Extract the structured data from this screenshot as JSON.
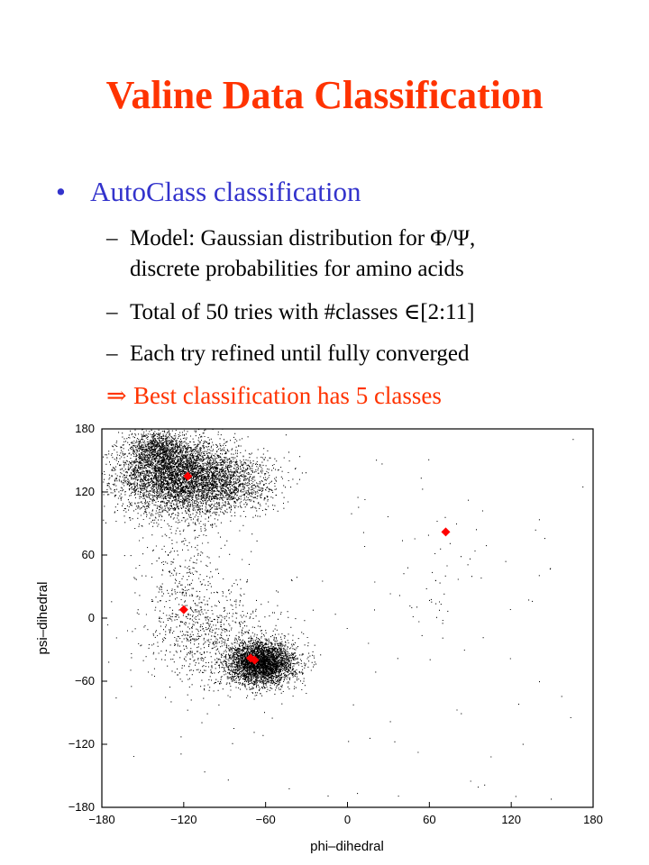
{
  "slide": {
    "title": "Valine Data Classification",
    "bullet": {
      "marker": "•",
      "text": "AutoClass classification"
    },
    "subbullets": [
      {
        "dash": "–",
        "line1": "Model: Gaussian distribution for Φ/Ψ,",
        "line2": "discrete probabilities for amino acids"
      },
      {
        "dash": "–",
        "line1": "Total of 50 tries with #classes ∈[2:11]"
      },
      {
        "dash": "–",
        "line1": "Each try refined until fully converged"
      }
    ],
    "conclusion": {
      "arrow": "⇒",
      "text": "Best classification has 5 classes"
    },
    "colors": {
      "title": "#ff3300",
      "bullet": "#3333cc",
      "conclusion": "#ff3300",
      "points": "#000000",
      "centers": "#ff0000"
    }
  },
  "chart_data": {
    "type": "scatter",
    "xlabel": "phi–dihedral",
    "ylabel": "psi–dihedral",
    "xlim": [
      -180,
      180
    ],
    "ylim": [
      -180,
      180
    ],
    "xticks": [
      -180,
      -120,
      -60,
      0,
      60,
      120,
      180
    ],
    "yticks": [
      -180,
      -120,
      -60,
      0,
      60,
      120,
      180
    ],
    "xtick_labels": [
      "−180",
      "−120",
      "−60",
      "0",
      "60",
      "120",
      "180"
    ],
    "ytick_labels": [
      "−180",
      "−120",
      "−60",
      "0",
      "60",
      "120",
      "180"
    ],
    "grid": false,
    "point_clusters": [
      {
        "cx": -125,
        "cy": 135,
        "sx": 22,
        "sy": 18,
        "n": 4200
      },
      {
        "cx": -140,
        "cy": 160,
        "sx": 10,
        "sy": 10,
        "n": 800
      },
      {
        "cx": -90,
        "cy": 128,
        "sx": 20,
        "sy": 14,
        "n": 1200
      },
      {
        "cx": -63,
        "cy": -43,
        "sx": 12,
        "sy": 10,
        "n": 3500
      },
      {
        "cx": -95,
        "cy": -20,
        "sx": 25,
        "sy": 25,
        "n": 700
      },
      {
        "cx": -120,
        "cy": 30,
        "sx": 15,
        "sy": 40,
        "n": 400
      },
      {
        "cx": 70,
        "cy": 40,
        "sx": 20,
        "sy": 30,
        "n": 40
      },
      {
        "cx": 0,
        "cy": 0,
        "sx": 120,
        "sy": 120,
        "n": 150
      }
    ],
    "class_centers": [
      {
        "x": -117,
        "y": 135
      },
      {
        "x": 72,
        "y": 82
      },
      {
        "x": -120,
        "y": 8
      },
      {
        "x": -71,
        "y": -38
      },
      {
        "x": -68,
        "y": -40
      }
    ]
  }
}
